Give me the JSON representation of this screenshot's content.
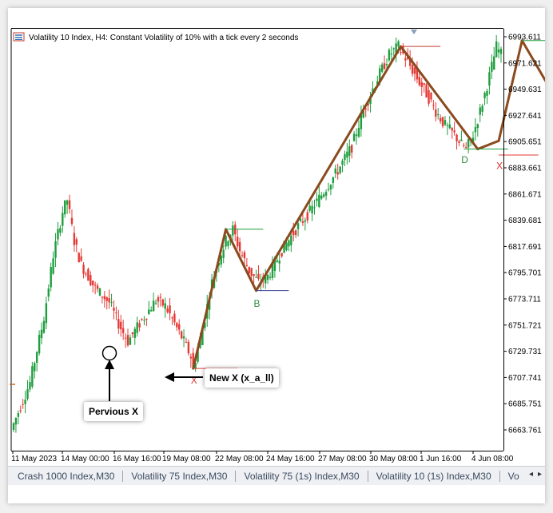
{
  "window": {
    "header_text": "Volatility 10 Index, H4:  Constant Volatility of 10% with a tick every 2 seconds"
  },
  "chart_data": {
    "type": "candlestick",
    "symbol": "Volatility 10 Index",
    "timeframe": "H4",
    "ylim": [
      6645,
      7000
    ],
    "y_ticks": [
      "6993.611",
      "6971.621",
      "6949.631",
      "6927.641",
      "6905.651",
      "6883.661",
      "6861.671",
      "6839.681",
      "6817.691",
      "6795.701",
      "6773.711",
      "6751.721",
      "6729.731",
      "6707.741",
      "6685.751",
      "6663.761"
    ],
    "x_ticks": [
      "11 May 2023",
      "14 May 00:00",
      "16 May 16:00",
      "19 May 08:00",
      "22 May 08:00",
      "24 May 16:00",
      "27 May 08:00",
      "30 May 08:00",
      "1 Jun 16:00",
      "4 Jun 08:00"
    ],
    "candle_count": 210,
    "price_path": [
      [
        0,
        6660
      ],
      [
        8,
        6700
      ],
      [
        14,
        6755
      ],
      [
        18,
        6808
      ],
      [
        22,
        6845
      ],
      [
        24,
        6855
      ],
      [
        27,
        6820
      ],
      [
        30,
        6800
      ],
      [
        36,
        6780
      ],
      [
        42,
        6768
      ],
      [
        46,
        6750
      ],
      [
        50,
        6735
      ],
      [
        55,
        6750
      ],
      [
        62,
        6770
      ],
      [
        66,
        6765
      ],
      [
        70,
        6750
      ],
      [
        74,
        6735
      ],
      [
        77,
        6722
      ],
      [
        78,
        6712
      ],
      [
        82,
        6745
      ],
      [
        86,
        6785
      ],
      [
        89,
        6805
      ],
      [
        92,
        6820
      ],
      [
        95,
        6830
      ],
      [
        98,
        6812
      ],
      [
        102,
        6795
      ],
      [
        106,
        6785
      ],
      [
        110,
        6790
      ],
      [
        116,
        6812
      ],
      [
        122,
        6830
      ],
      [
        128,
        6845
      ],
      [
        134,
        6862
      ],
      [
        140,
        6880
      ],
      [
        146,
        6900
      ],
      [
        150,
        6925
      ],
      [
        154,
        6945
      ],
      [
        158,
        6962
      ],
      [
        162,
        6978
      ],
      [
        166,
        6985
      ],
      [
        170,
        6972
      ],
      [
        174,
        6958
      ],
      [
        178,
        6945
      ],
      [
        182,
        6930
      ],
      [
        186,
        6918
      ],
      [
        190,
        6910
      ],
      [
        193,
        6902
      ],
      [
        195,
        6898
      ],
      [
        198,
        6910
      ],
      [
        201,
        6930
      ],
      [
        204,
        6952
      ],
      [
        206,
        6968
      ],
      [
        208,
        6985
      ],
      [
        211,
        6975
      ],
      [
        214,
        6962
      ],
      [
        218,
        6955
      ],
      [
        222,
        6970
      ],
      [
        226,
        6982
      ],
      [
        230,
        6940
      ],
      [
        234,
        6918
      ],
      [
        238,
        6905
      ]
    ],
    "zigzag": [
      [
        77,
        6712
      ],
      [
        91,
        6830
      ],
      [
        104,
        6778
      ],
      [
        166,
        6985
      ],
      [
        199,
        6898
      ],
      [
        208,
        6905
      ],
      [
        218,
        6990
      ],
      [
        241,
        6912
      ]
    ],
    "labels": [
      {
        "text": "B",
        "x": 104,
        "y": 6771,
        "color": "#2e8b3e"
      },
      {
        "text": "D",
        "x": 193,
        "y": 6893,
        "color": "#2e8b3e"
      },
      {
        "text": "X",
        "x": 208,
        "y": 6888,
        "color": "#e03030"
      },
      {
        "text": "X",
        "x": 77,
        "y": 6706,
        "color": "#e03030"
      }
    ],
    "colors": {
      "bull": "#1e9e3e",
      "bear": "#e53935",
      "zigzag": "#8b4a1e",
      "grid_axis": "#000000"
    }
  },
  "annotations": {
    "previous_x": "Pervious X",
    "new_x": "New X (x_a_ll)"
  },
  "tabs": [
    "Crash 1000 Index,M30",
    "Volatility 75 Index,M30",
    "Volatility 75 (1s) Index,M30",
    "Volatility 10 (1s) Index,M30",
    "Vo"
  ],
  "tab_scroll": {
    "left": "◂",
    "right": "▸"
  }
}
